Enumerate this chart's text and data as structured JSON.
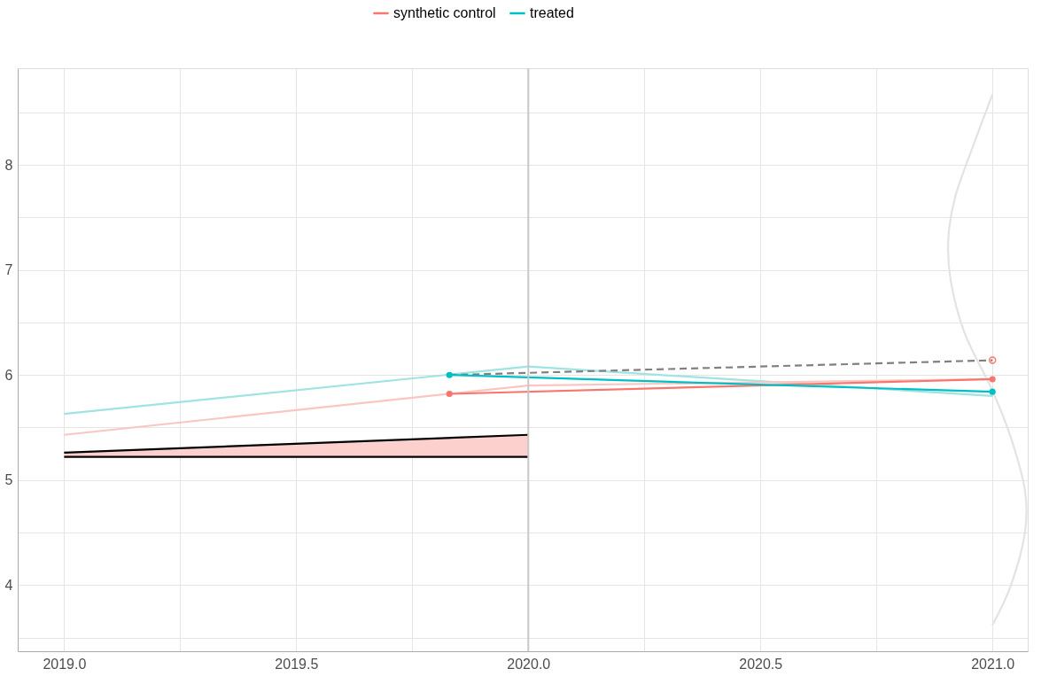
{
  "chart_data": {
    "type": "line",
    "xlim": [
      2018.9,
      2021.076
    ],
    "ylim": [
      3.37,
      8.92
    ],
    "xticks": [
      {
        "value": 2019.0,
        "label": "2019.0"
      },
      {
        "value": 2019.25,
        "label": null
      },
      {
        "value": 2019.5,
        "label": "2019.5"
      },
      {
        "value": 2019.75,
        "label": null
      },
      {
        "value": 2020.0,
        "label": "2020.0"
      },
      {
        "value": 2020.25,
        "label": null
      },
      {
        "value": 2020.5,
        "label": "2020.5"
      },
      {
        "value": 2020.75,
        "label": null
      },
      {
        "value": 2021.0,
        "label": "2021.0"
      }
    ],
    "yticks": [
      {
        "value": 3.5,
        "label": null
      },
      4,
      {
        "value": 4.5,
        "label": null
      },
      5,
      {
        "value": 5.5,
        "label": null
      },
      6,
      {
        "value": 6.5,
        "label": null
      },
      7,
      {
        "value": 7.5,
        "label": null
      },
      8,
      {
        "value": 8.5,
        "label": null
      }
    ],
    "grid": true,
    "legend": "top",
    "ref_lines": [
      {
        "axis": "x",
        "value": 2020.0,
        "color": "#c8c8c8"
      }
    ],
    "series": [
      {
        "type": "line",
        "color": "#000000",
        "x": [
          2019.0,
          2020.0
        ],
        "values": [
          5.26,
          5.43
        ],
        "lower": [
          5.22,
          5.22
        ],
        "upper": [
          5.26,
          5.43
        ],
        "marker": "none"
      },
      {
        "type": "line",
        "color": "#000000",
        "x": [
          2019.0,
          2020.0
        ],
        "values": [
          5.22,
          5.22
        ],
        "marker": "none"
      },
      {
        "type": "line",
        "color": "#9fe3e3",
        "x": [
          2019.0,
          2020.0,
          2021.0
        ],
        "values": [
          5.63,
          6.08,
          5.8
        ],
        "marker": "none"
      },
      {
        "type": "line",
        "color": "#f9c6c1",
        "x": [
          2019.0,
          2020.0,
          2021.0
        ],
        "values": [
          5.43,
          5.9,
          5.96
        ],
        "marker": "none"
      },
      {
        "type": "line",
        "color": "#e3e3e3",
        "x": [
          2021.0,
          2020.96,
          2020.92,
          2020.905,
          2020.91,
          2020.94,
          2021.0,
          2021.04,
          2021.07,
          2021.07,
          2021.04,
          2021.0
        ],
        "values": [
          8.67,
          8.2,
          7.7,
          7.3,
          6.9,
          6.4,
          5.85,
          5.4,
          4.9,
          4.5,
          4.0,
          3.62
        ],
        "marker": "none"
      },
      {
        "type": "line",
        "color": "#808080",
        "x": [
          2019.83,
          2021.0
        ],
        "values": [
          6.0,
          6.14
        ],
        "marker": "none",
        "line_style": "dashed"
      },
      {
        "type": "scatter",
        "color": "#f8766d",
        "x": [
          2021.0
        ],
        "values": [
          6.14
        ],
        "marker": "circle"
      },
      {
        "name": "synthetic control",
        "type": "line",
        "color": "#f8766d",
        "x": [
          2019.83,
          2021.0
        ],
        "values": [
          5.82,
          5.96
        ],
        "marker": "circle"
      },
      {
        "name": "treated",
        "type": "line",
        "color": "#00bfc4",
        "x": [
          2019.83,
          2021.0
        ],
        "values": [
          6.0,
          5.84
        ],
        "marker": "circle"
      }
    ]
  }
}
